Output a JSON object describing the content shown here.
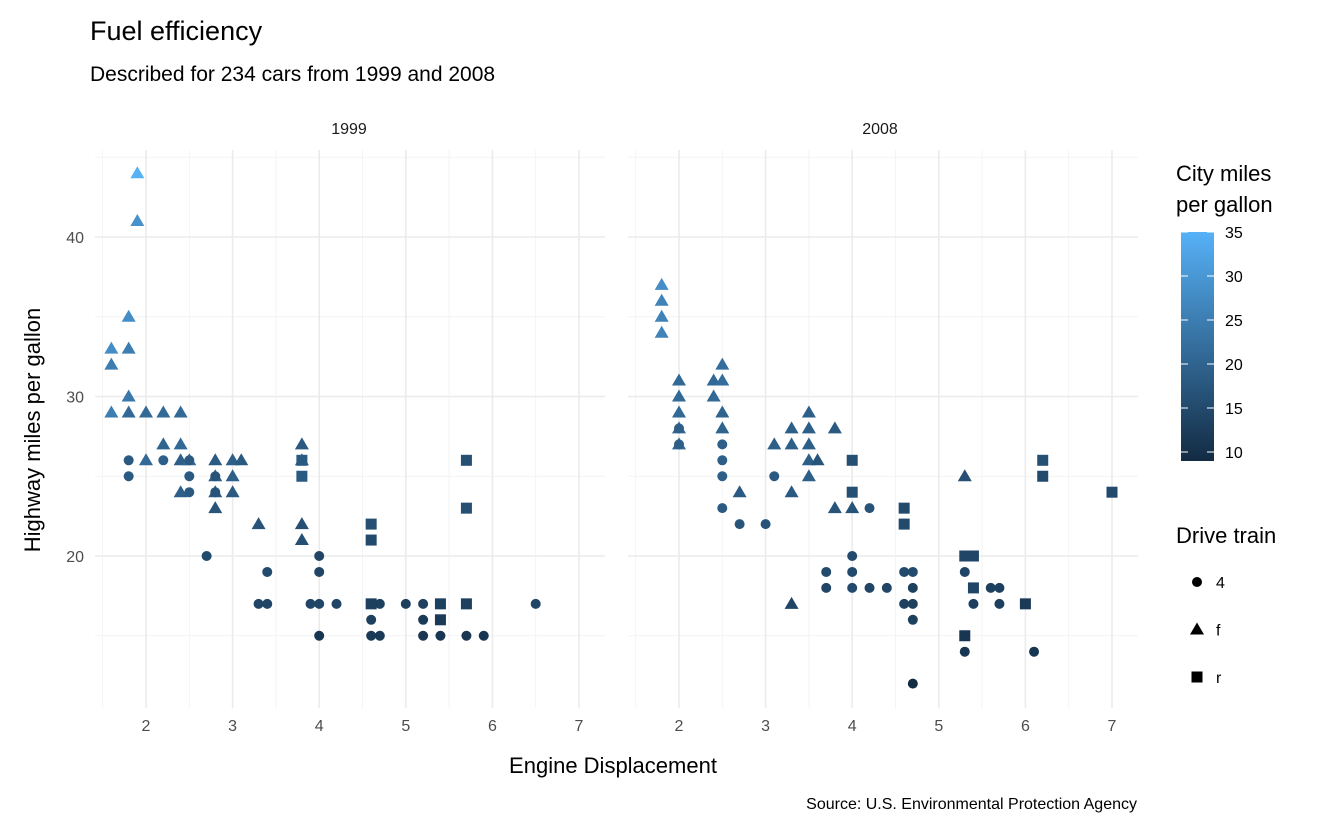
{
  "chart_data": {
    "type": "scatter",
    "title": "Fuel efficiency",
    "subtitle": "Described for 234 cars from 1999 and 2008",
    "caption": "Source: U.S. Environmental Protection Agency",
    "xlabel": "Engine Displacement",
    "ylabel": "Highway miles per gallon",
    "xlim": [
      1.4,
      7.3
    ],
    "ylim": [
      10.6,
      45.5
    ],
    "x_ticks": [
      "2",
      "3",
      "4",
      "5",
      "6",
      "7"
    ],
    "y_ticks": [
      "20",
      "30",
      "40"
    ],
    "grid": true,
    "facets": [
      "1999",
      "2008"
    ],
    "color_legend": {
      "title_line1": "City miles",
      "title_line2": "per gallon",
      "ticks": [
        "10",
        "15",
        "20",
        "25",
        "30",
        "35"
      ],
      "range": [
        9,
        35
      ],
      "low_color": "#132B43",
      "high_color": "#56B1F7",
      "placement": "right"
    },
    "shape_legend": {
      "title": "Drive train",
      "items": [
        {
          "label": "4",
          "shape": "circle"
        },
        {
          "label": "f",
          "shape": "triangle"
        },
        {
          "label": "r",
          "shape": "square"
        }
      ],
      "placement": "right"
    },
    "point_fields": [
      "displ",
      "hwy",
      "drv",
      "cty"
    ],
    "series": [
      {
        "facet": "1999",
        "points": [
          [
            1.9,
            44,
            "f",
            35
          ],
          [
            1.9,
            41,
            "f",
            29
          ],
          [
            1.8,
            35,
            "f",
            28
          ],
          [
            1.6,
            33,
            "f",
            28
          ],
          [
            1.8,
            33,
            "f",
            25
          ],
          [
            1.6,
            32,
            "f",
            25
          ],
          [
            1.8,
            30,
            "f",
            24
          ],
          [
            1.6,
            29,
            "f",
            25
          ],
          [
            1.8,
            29,
            "f",
            21
          ],
          [
            2.0,
            29,
            "f",
            21
          ],
          [
            2.2,
            29,
            "f",
            21
          ],
          [
            2.4,
            29,
            "f",
            21
          ],
          [
            2.2,
            27,
            "f",
            20
          ],
          [
            2.4,
            27,
            "f",
            21
          ],
          [
            2.0,
            26,
            "f",
            21
          ],
          [
            2.4,
            26,
            "f",
            19
          ],
          [
            2.5,
            26,
            "f",
            21
          ],
          [
            3.0,
            26,
            "f",
            19
          ],
          [
            3.1,
            26,
            "f",
            18
          ],
          [
            2.8,
            26,
            "f",
            18
          ],
          [
            2.4,
            24,
            "f",
            19
          ],
          [
            2.8,
            24,
            "f",
            18
          ],
          [
            3.0,
            24,
            "f",
            18
          ],
          [
            2.8,
            25,
            "f",
            19
          ],
          [
            3.0,
            25,
            "f",
            19
          ],
          [
            2.8,
            23,
            "f",
            17
          ],
          [
            3.3,
            22,
            "f",
            17
          ],
          [
            3.8,
            27,
            "f",
            18
          ],
          [
            3.8,
            26,
            "f",
            18
          ],
          [
            3.8,
            22,
            "f",
            16
          ],
          [
            3.8,
            21,
            "f",
            16
          ],
          [
            1.8,
            26,
            "4",
            18
          ],
          [
            1.8,
            25,
            "4",
            18
          ],
          [
            2.2,
            26,
            "4",
            19
          ],
          [
            2.5,
            26,
            "4",
            18
          ],
          [
            2.5,
            25,
            "4",
            18
          ],
          [
            2.5,
            24,
            "4",
            18
          ],
          [
            2.8,
            25,
            "4",
            17
          ],
          [
            2.8,
            24,
            "4",
            17
          ],
          [
            2.7,
            20,
            "4",
            15
          ],
          [
            3.4,
            19,
            "4",
            15
          ],
          [
            3.3,
            17,
            "4",
            14
          ],
          [
            3.4,
            17,
            "4",
            14
          ],
          [
            3.9,
            17,
            "4",
            14
          ],
          [
            4.0,
            20,
            "4",
            14
          ],
          [
            4.0,
            19,
            "4",
            14
          ],
          [
            4.0,
            17,
            "4",
            14
          ],
          [
            4.0,
            15,
            "4",
            11
          ],
          [
            4.2,
            17,
            "4",
            14
          ],
          [
            4.6,
            17,
            "4",
            13
          ],
          [
            4.6,
            16,
            "4",
            13
          ],
          [
            4.6,
            15,
            "4",
            12
          ],
          [
            4.7,
            17,
            "4",
            13
          ],
          [
            4.7,
            15,
            "4",
            12
          ],
          [
            5.0,
            17,
            "4",
            13
          ],
          [
            5.2,
            17,
            "4",
            13
          ],
          [
            5.2,
            16,
            "4",
            12
          ],
          [
            5.2,
            15,
            "4",
            11
          ],
          [
            5.4,
            15,
            "4",
            11
          ],
          [
            5.7,
            15,
            "4",
            11
          ],
          [
            5.9,
            15,
            "4",
            11
          ],
          [
            6.5,
            17,
            "4",
            14
          ],
          [
            3.8,
            26,
            "r",
            18
          ],
          [
            3.8,
            25,
            "r",
            18
          ],
          [
            4.6,
            22,
            "r",
            16
          ],
          [
            4.6,
            21,
            "r",
            15
          ],
          [
            4.6,
            17,
            "r",
            13
          ],
          [
            5.4,
            17,
            "r",
            13
          ],
          [
            5.4,
            16,
            "r",
            12
          ],
          [
            5.7,
            26,
            "r",
            16
          ],
          [
            5.7,
            23,
            "r",
            16
          ],
          [
            5.7,
            17,
            "r",
            13
          ]
        ]
      },
      {
        "facet": "2008",
        "points": [
          [
            1.8,
            37,
            "f",
            28
          ],
          [
            1.8,
            36,
            "f",
            26
          ],
          [
            1.8,
            35,
            "f",
            26
          ],
          [
            1.8,
            34,
            "f",
            26
          ],
          [
            2.0,
            31,
            "f",
            21
          ],
          [
            2.0,
            30,
            "f",
            21
          ],
          [
            2.0,
            29,
            "f",
            21
          ],
          [
            2.0,
            28,
            "f",
            21
          ],
          [
            2.0,
            27,
            "f",
            21
          ],
          [
            2.5,
            32,
            "f",
            22
          ],
          [
            2.4,
            31,
            "f",
            21
          ],
          [
            2.5,
            31,
            "f",
            22
          ],
          [
            2.4,
            30,
            "f",
            21
          ],
          [
            2.5,
            29,
            "f",
            20
          ],
          [
            2.5,
            28,
            "f",
            20
          ],
          [
            2.7,
            24,
            "f",
            18
          ],
          [
            3.1,
            27,
            "f",
            19
          ],
          [
            3.3,
            28,
            "f",
            19
          ],
          [
            3.3,
            27,
            "f",
            19
          ],
          [
            3.3,
            24,
            "f",
            18
          ],
          [
            3.5,
            29,
            "f",
            19
          ],
          [
            3.5,
            28,
            "f",
            19
          ],
          [
            3.5,
            27,
            "f",
            19
          ],
          [
            3.5,
            26,
            "f",
            19
          ],
          [
            3.6,
            26,
            "f",
            17
          ],
          [
            3.5,
            25,
            "f",
            19
          ],
          [
            3.8,
            28,
            "f",
            18
          ],
          [
            3.8,
            23,
            "f",
            17
          ],
          [
            4.0,
            23,
            "f",
            17
          ],
          [
            3.3,
            17,
            "f",
            14
          ],
          [
            5.3,
            25,
            "f",
            16
          ],
          [
            2.0,
            28,
            "4",
            19
          ],
          [
            2.0,
            27,
            "4",
            19
          ],
          [
            2.5,
            27,
            "4",
            19
          ],
          [
            2.5,
            26,
            "4",
            19
          ],
          [
            2.5,
            25,
            "4",
            19
          ],
          [
            2.5,
            23,
            "4",
            18
          ],
          [
            2.7,
            22,
            "4",
            17
          ],
          [
            3.0,
            22,
            "4",
            17
          ],
          [
            3.1,
            25,
            "4",
            18
          ],
          [
            3.7,
            19,
            "4",
            15
          ],
          [
            3.7,
            18,
            "4",
            14
          ],
          [
            4.0,
            20,
            "4",
            15
          ],
          [
            4.0,
            19,
            "4",
            15
          ],
          [
            4.0,
            18,
            "4",
            15
          ],
          [
            4.2,
            23,
            "4",
            17
          ],
          [
            4.2,
            18,
            "4",
            14
          ],
          [
            4.4,
            18,
            "4",
            14
          ],
          [
            4.6,
            19,
            "4",
            15
          ],
          [
            4.6,
            17,
            "4",
            13
          ],
          [
            4.7,
            19,
            "4",
            15
          ],
          [
            4.7,
            18,
            "4",
            13
          ],
          [
            4.7,
            17,
            "4",
            13
          ],
          [
            4.7,
            16,
            "4",
            13
          ],
          [
            4.7,
            12,
            "4",
            9
          ],
          [
            5.3,
            19,
            "4",
            14
          ],
          [
            5.3,
            14,
            "4",
            11
          ],
          [
            5.4,
            17,
            "4",
            13
          ],
          [
            5.6,
            18,
            "4",
            13
          ],
          [
            5.7,
            18,
            "4",
            13
          ],
          [
            5.7,
            17,
            "4",
            13
          ],
          [
            6.1,
            14,
            "4",
            11
          ],
          [
            4.0,
            26,
            "r",
            16
          ],
          [
            4.0,
            24,
            "r",
            16
          ],
          [
            4.6,
            23,
            "r",
            15
          ],
          [
            4.6,
            22,
            "r",
            15
          ],
          [
            5.3,
            20,
            "r",
            14
          ],
          [
            5.4,
            20,
            "r",
            14
          ],
          [
            5.3,
            15,
            "r",
            11
          ],
          [
            5.4,
            18,
            "r",
            14
          ],
          [
            6.0,
            17,
            "r",
            12
          ],
          [
            6.2,
            26,
            "r",
            16
          ],
          [
            6.2,
            25,
            "r",
            15
          ],
          [
            7.0,
            24,
            "r",
            15
          ]
        ]
      }
    ]
  }
}
